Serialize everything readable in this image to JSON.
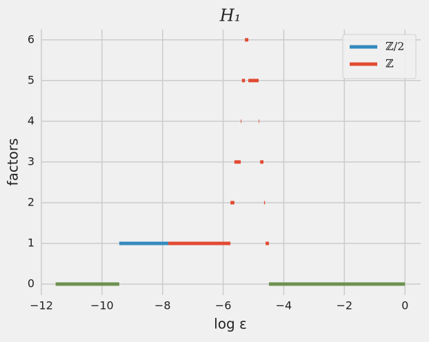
{
  "chart_data": {
    "type": "interval",
    "title": "H₁",
    "xlabel": "log ε",
    "ylabel": "factors",
    "xlim": [
      -12,
      0.52
    ],
    "ylim": [
      -0.27,
      6.25
    ],
    "xticks": [
      {
        "value": -12,
        "label": "−12"
      },
      {
        "value": -10,
        "label": "−10"
      },
      {
        "value": -8,
        "label": "−8"
      },
      {
        "value": -6,
        "label": "−6"
      },
      {
        "value": -4,
        "label": "−4"
      },
      {
        "value": -2,
        "label": "−2"
      },
      0
    ],
    "yticks": [
      0,
      1,
      2,
      3,
      4,
      5,
      6
    ],
    "grid": true,
    "legend": "upper right",
    "series": [
      {
        "color": "#6d904f",
        "values": [
          0,
          0
        ],
        "x_start": [
          -11.53,
          -4.49
        ],
        "x_end": [
          -9.43,
          0
        ]
      },
      {
        "name": "ℤ/2",
        "color": "#348abd",
        "values": [
          1
        ],
        "x_start": [
          -9.43
        ],
        "x_end": [
          -7.81
        ]
      },
      {
        "name": "ℤ",
        "color": "#e24a33",
        "values": [
          1,
          1,
          2,
          2,
          3,
          3,
          4,
          4,
          5,
          5,
          6
        ],
        "x_start": [
          -7.81,
          -4.6,
          -5.76,
          -4.65,
          -5.63,
          -4.78,
          -5.42,
          -4.83,
          -5.38,
          -5.17,
          -5.28
        ],
        "x_end": [
          -5.76,
          -4.49,
          -5.63,
          -4.62,
          -5.42,
          -4.67,
          -5.4,
          -4.81,
          -5.28,
          -4.83,
          -5.17
        ]
      }
    ]
  }
}
